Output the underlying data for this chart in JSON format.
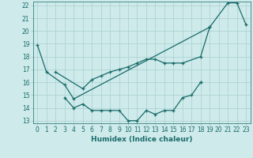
{
  "xlabel": "Humidex (Indice chaleur)",
  "line1_data": [
    [
      0,
      18.9
    ],
    [
      1,
      16.8
    ],
    [
      3,
      15.8
    ],
    [
      4,
      14.7
    ],
    [
      19,
      20.3
    ],
    [
      21,
      22.2
    ],
    [
      22,
      22.2
    ],
    [
      23,
      20.5
    ]
  ],
  "line2_data": [
    [
      2,
      16.8
    ],
    [
      5,
      15.5
    ],
    [
      6,
      16.2
    ],
    [
      7,
      16.5
    ],
    [
      8,
      16.8
    ],
    [
      9,
      17.0
    ],
    [
      10,
      17.2
    ],
    [
      11,
      17.5
    ],
    [
      12,
      17.8
    ],
    [
      13,
      17.8
    ],
    [
      14,
      17.5
    ],
    [
      15,
      17.5
    ],
    [
      16,
      17.5
    ],
    [
      18,
      18.0
    ],
    [
      19,
      20.3
    ]
  ],
  "line3_data": [
    [
      3,
      14.8
    ],
    [
      4,
      14.0
    ],
    [
      5,
      14.3
    ],
    [
      6,
      13.8
    ],
    [
      7,
      13.8
    ],
    [
      8,
      13.8
    ],
    [
      9,
      13.8
    ],
    [
      10,
      13.0
    ],
    [
      11,
      13.0
    ],
    [
      12,
      13.8
    ],
    [
      13,
      13.5
    ],
    [
      14,
      13.8
    ],
    [
      15,
      13.8
    ],
    [
      16,
      14.8
    ],
    [
      17,
      15.0
    ],
    [
      18,
      16.0
    ],
    [
      18,
      16.0
    ]
  ],
  "line_color": "#1a6b6b",
  "bg_color": "#ceeaea",
  "grid_color": "#aacfcf",
  "ylim": [
    13,
    22
  ],
  "xlim": [
    0,
    23
  ]
}
